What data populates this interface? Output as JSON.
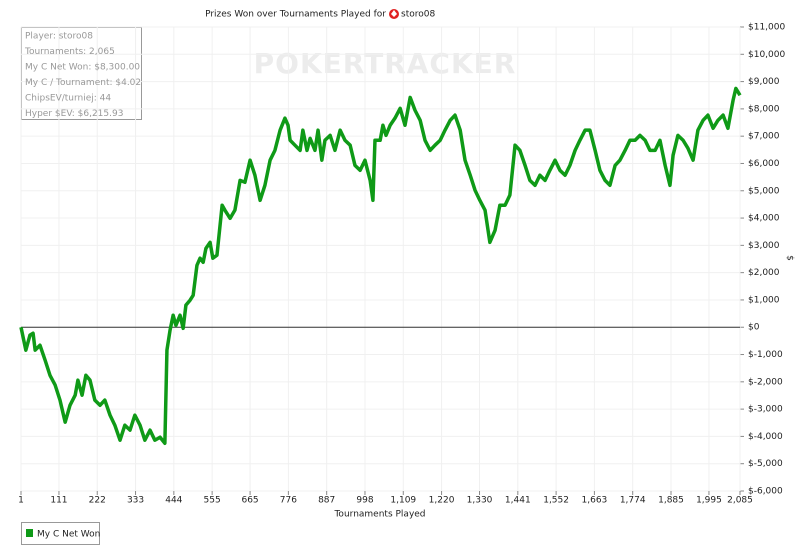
{
  "chart_data": {
    "type": "line",
    "title": "Prizes Won over Tournaments Played for",
    "player": "storo08",
    "watermark": "POKERTRACKER",
    "x_label": "Tournaments Played",
    "y_label": "$",
    "stats": [
      "Player: storo08",
      "Tournaments: 2,065",
      "My C Net Won: $8,300.00",
      "My C / Tournament: $4.02",
      "ChipsEV/turniej: 44",
      "Hyper $EV: $6,215.93"
    ],
    "xlim": [
      1,
      2085
    ],
    "xticks": [
      1,
      111,
      222,
      333,
      444,
      555,
      665,
      776,
      887,
      998,
      {
        "value": 1109,
        "label": "1,109"
      },
      {
        "value": 1220,
        "label": "1,220"
      },
      {
        "value": 1330,
        "label": "1,330"
      },
      {
        "value": 1441,
        "label": "1,441"
      },
      {
        "value": 1552,
        "label": "1,552"
      },
      {
        "value": 1663,
        "label": "1,663"
      },
      {
        "value": 1774,
        "label": "1,774"
      },
      {
        "value": 1885,
        "label": "1,885"
      },
      {
        "value": 1995,
        "label": "1,995"
      },
      {
        "value": 2085,
        "label": "2,085"
      }
    ],
    "ylim": [
      -6000,
      11000
    ],
    "yticks": [
      {
        "value": 11000,
        "label": "$11,000"
      },
      {
        "value": 10000,
        "label": "$10,000"
      },
      {
        "value": 9000,
        "label": "$9,000"
      },
      {
        "value": 8000,
        "label": "$8,000"
      },
      {
        "value": 7000,
        "label": "$7,000"
      },
      {
        "value": 6000,
        "label": "$6,000"
      },
      {
        "value": 5000,
        "label": "$5,000"
      },
      {
        "value": 4000,
        "label": "$4,000"
      },
      {
        "value": 3000,
        "label": "$3,000"
      },
      {
        "value": 2000,
        "label": "$2,000"
      },
      {
        "value": 1000,
        "label": "$1,000"
      },
      {
        "value": 0,
        "label": "$0"
      },
      {
        "value": -1000,
        "label": "$-1,000"
      },
      {
        "value": -2000,
        "label": "$-2,000"
      },
      {
        "value": -3000,
        "label": "$-3,000"
      },
      {
        "value": -4000,
        "label": "$-4,000"
      },
      {
        "value": -5000,
        "label": "$-5,000"
      },
      {
        "value": -6000,
        "label": "$-6,000"
      }
    ],
    "grid": true,
    "legend": "bottom-left",
    "series": [
      {
        "name": "My C Net Won",
        "color": "#0f9a17",
        "x": [
          1,
          15,
          27,
          36,
          42,
          56,
          71,
          85,
          100,
          114,
          129,
          143,
          158,
          166,
          178,
          189,
          201,
          215,
          230,
          244,
          259,
          273,
          288,
          302,
          317,
          331,
          346,
          360,
          375,
          389,
          404,
          418,
          424,
          433,
          442,
          450,
          462,
          471,
          479,
          491,
          500,
          511,
          520,
          529,
          537,
          549,
          557,
          569,
          584,
          592,
          607,
          621,
          636,
          650,
          665,
          679,
          694,
          708,
          723,
          737,
          752,
          766,
          775,
          781,
          795,
          810,
          818,
          830,
          839,
          853,
          862,
          873,
          882,
          897,
          911,
          926,
          940,
          955,
          969,
          984,
          998,
          1013,
          1021,
          1027,
          1042,
          1050,
          1059,
          1071,
          1085,
          1100,
          1114,
          1129,
          1143,
          1158,
          1172,
          1187,
          1201,
          1216,
          1230,
          1245,
          1259,
          1274,
          1288,
          1303,
          1317,
          1331,
          1346,
          1360,
          1375,
          1389,
          1404,
          1418,
          1433,
          1447,
          1462,
          1476,
          1491,
          1505,
          1520,
          1534,
          1549,
          1563,
          1578,
          1592,
          1607,
          1621,
          1636,
          1650,
          1665,
          1679,
          1694,
          1708,
          1723,
          1737,
          1752,
          1766,
          1781,
          1795,
          1810,
          1824,
          1839,
          1853,
          1868,
          1882,
          1891,
          1905,
          1920,
          1934,
          1949,
          1963,
          1978,
          1992,
          2007,
          2021,
          2036,
          2050,
          2065,
          2073,
          2085
        ],
        "values": [
          0,
          -840,
          -290,
          -220,
          -840,
          -660,
          -1210,
          -1760,
          -2120,
          -2670,
          -3480,
          -2860,
          -2490,
          -1940,
          -2490,
          -1760,
          -1940,
          -2670,
          -2860,
          -2670,
          -3220,
          -3590,
          -4140,
          -3590,
          -3770,
          -3220,
          -3590,
          -4140,
          -3770,
          -4140,
          -4030,
          -4250,
          -840,
          -110,
          440,
          70,
          440,
          -40,
          810,
          990,
          1170,
          2270,
          2530,
          2380,
          2890,
          3110,
          2530,
          2640,
          4470,
          4290,
          3990,
          4290,
          5380,
          5310,
          6120,
          5570,
          4650,
          5200,
          6120,
          6480,
          7220,
          7660,
          7400,
          6850,
          6670,
          6480,
          7220,
          6480,
          6920,
          6480,
          7220,
          6120,
          6850,
          7030,
          6480,
          7220,
          6850,
          6670,
          5930,
          5750,
          6120,
          5380,
          4650,
          6850,
          6850,
          7400,
          7030,
          7400,
          7660,
          8020,
          7400,
          8420,
          7950,
          7580,
          6850,
          6480,
          6670,
          6850,
          7220,
          7580,
          7770,
          7220,
          6120,
          5570,
          5020,
          4650,
          4290,
          3110,
          3550,
          4470,
          4470,
          4840,
          6670,
          6480,
          5930,
          5380,
          5200,
          5570,
          5380,
          5750,
          6120,
          5750,
          5570,
          5930,
          6480,
          6850,
          7220,
          7220,
          6480,
          5750,
          5380,
          5200,
          5930,
          6120,
          6480,
          6850,
          6850,
          7030,
          6850,
          6480,
          6480,
          6850,
          5930,
          5200,
          6300,
          7030,
          6850,
          6560,
          6120,
          7220,
          7580,
          7770,
          7290,
          7580,
          7770,
          7290,
          8320,
          8750,
          8500
        ]
      }
    ]
  }
}
